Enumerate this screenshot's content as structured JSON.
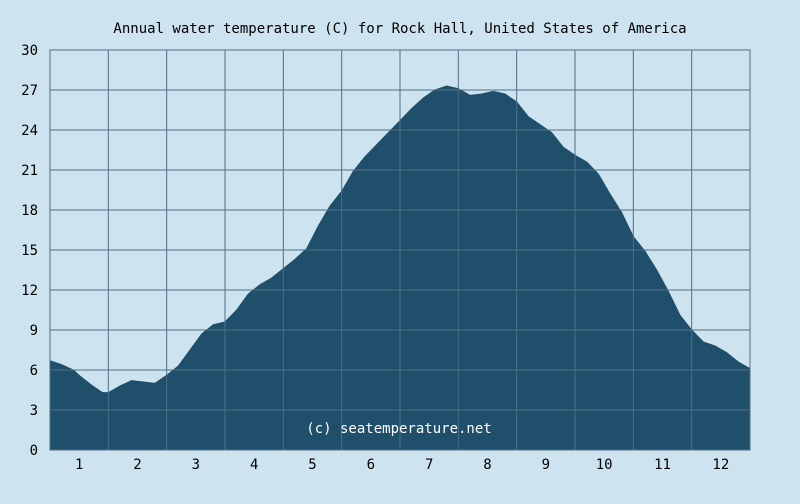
{
  "chart_data": {
    "type": "area",
    "title": "Annual water temperature (C) for Rock Hall, United States of America",
    "xlabel": "",
    "ylabel": "",
    "ylim": [
      0,
      30
    ],
    "xlim": [
      0.5,
      12.5
    ],
    "yticks": [
      "0",
      "3",
      "6",
      "9",
      "12",
      "15",
      "18",
      "21",
      "24",
      "27",
      "30"
    ],
    "xticks": [
      "1",
      "2",
      "3",
      "4",
      "5",
      "6",
      "7",
      "8",
      "9",
      "10",
      "11",
      "12"
    ],
    "grid": true,
    "watermark": "(c) seatemperature.net",
    "colors": {
      "background": "#cde3ef",
      "fill": "#1f4f6b",
      "grid": "#4f6f86"
    },
    "series": [
      {
        "x": [
          0.5,
          0.7,
          0.9,
          1.0,
          1.2,
          1.4,
          1.5,
          1.7,
          1.9,
          2.1,
          2.3,
          2.5,
          2.7,
          2.9,
          3.1,
          3.3,
          3.5,
          3.7,
          3.9,
          4.1,
          4.3,
          4.5,
          4.7,
          4.9,
          5.1,
          5.3,
          5.5,
          5.7,
          5.9,
          6.1,
          6.3,
          6.5,
          6.7,
          6.9,
          7.1,
          7.3,
          7.5,
          7.7,
          7.9,
          8.1,
          8.3,
          8.5,
          8.7,
          8.9,
          9.1,
          9.3,
          9.5,
          9.7,
          9.9,
          10.1,
          10.3,
          10.5,
          10.7,
          10.9,
          11.1,
          11.3,
          11.5,
          11.7,
          11.9,
          12.1,
          12.3,
          12.5
        ],
        "y": [
          6.7,
          6.4,
          6.0,
          5.6,
          4.9,
          4.3,
          4.3,
          4.8,
          5.2,
          5.1,
          5.0,
          5.6,
          6.3,
          7.5,
          8.7,
          9.4,
          9.6,
          10.5,
          11.7,
          12.4,
          12.9,
          13.6,
          14.3,
          15.1,
          16.8,
          18.3,
          19.4,
          20.9,
          22.0,
          22.9,
          23.8,
          24.7,
          25.6,
          26.4,
          27.0,
          27.3,
          27.1,
          26.6,
          26.7,
          26.9,
          26.7,
          26.1,
          25.0,
          24.4,
          23.8,
          22.7,
          22.1,
          21.6,
          20.7,
          19.2,
          17.8,
          16.0,
          14.9,
          13.5,
          11.9,
          10.1,
          9.0,
          8.1,
          7.8,
          7.3,
          6.6,
          6.1
        ]
      }
    ]
  }
}
